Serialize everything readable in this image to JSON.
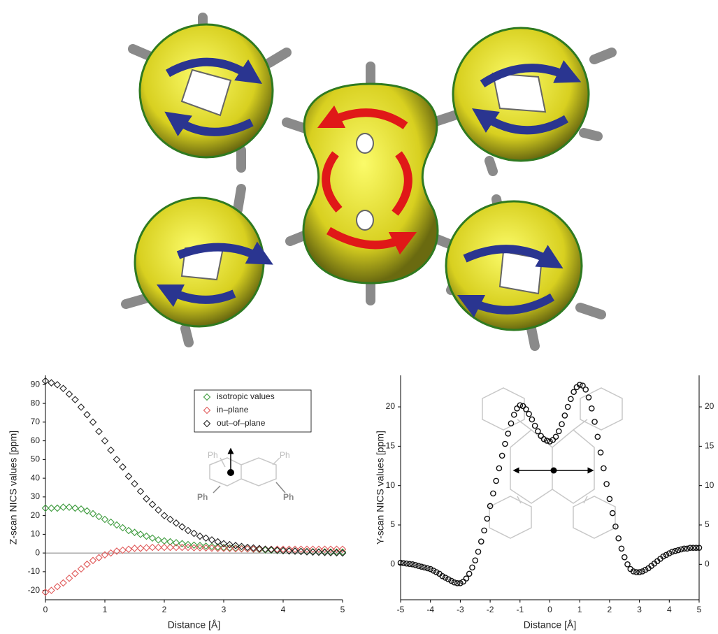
{
  "chart_data": [
    {
      "type": "scatter",
      "xlabel": "Distance [Å]",
      "ylabel": "Z-scan NICS values [ppm]",
      "x": [
        0,
        0.1,
        0.2,
        0.3,
        0.4,
        0.5,
        0.6,
        0.7,
        0.8,
        0.9,
        1,
        1.1,
        1.2,
        1.3,
        1.4,
        1.5,
        1.6,
        1.7,
        1.8,
        1.9,
        2,
        2.1,
        2.2,
        2.3,
        2.4,
        2.5,
        2.6,
        2.7,
        2.8,
        2.9,
        3,
        3.1,
        3.2,
        3.3,
        3.4,
        3.5,
        3.6,
        3.7,
        3.8,
        3.9,
        4,
        4.1,
        4.2,
        4.3,
        4.4,
        4.5,
        4.6,
        4.7,
        4.8,
        4.9,
        5
      ],
      "xlim": [
        0,
        5
      ],
      "ylim": [
        -25,
        95
      ],
      "xticks": [
        0,
        1,
        2,
        3,
        4,
        5
      ],
      "yticks": [
        -20,
        -10,
        0,
        10,
        20,
        30,
        40,
        50,
        60,
        70,
        80,
        90
      ],
      "legend": "upper right",
      "marker": "diamond",
      "zero_line": true,
      "annotations": [
        "Ph",
        "Ph",
        "Ph",
        "Ph"
      ],
      "series": [
        {
          "name": "isotropic values",
          "color": "#3c9a3c",
          "values": [
            24,
            24,
            24,
            24.5,
            24.5,
            24,
            23.5,
            22.5,
            21,
            19.5,
            18,
            16.5,
            15,
            13.5,
            12,
            11,
            10,
            9,
            8,
            7,
            6.5,
            6,
            5.5,
            5,
            4.5,
            4.2,
            4,
            3.7,
            3.5,
            3.2,
            3,
            2.8,
            2.6,
            2.4,
            2.2,
            2,
            1.8,
            1.6,
            1.5,
            1.3,
            1.2,
            1.1,
            1,
            0.9,
            0.8,
            0.7,
            0.6,
            0.6,
            0.5,
            0.5,
            0.5
          ]
        },
        {
          "name": "in–plane",
          "color": "#e05a5a",
          "values": [
            -21,
            -20,
            -18,
            -16,
            -13.5,
            -11,
            -8.5,
            -6,
            -4,
            -2.5,
            -1,
            0,
            1,
            1.5,
            2,
            2.5,
            2.5,
            2.8,
            3,
            3,
            3,
            3,
            3,
            3,
            3,
            2.8,
            2.8,
            2.7,
            2.6,
            2.5,
            2.5,
            2.4,
            2.3,
            2.2,
            2.2,
            2.1,
            2,
            2,
            2,
            2,
            2,
            2,
            2,
            2,
            2,
            2,
            2,
            2,
            2,
            2,
            2
          ]
        },
        {
          "name": "out–of–plane",
          "color": "#222222",
          "values": [
            92,
            91,
            90,
            88,
            85,
            82,
            78,
            74,
            70,
            65,
            60,
            55,
            50,
            46,
            41,
            37,
            33,
            29,
            26,
            23,
            20,
            18,
            16,
            14,
            12,
            10.5,
            9,
            8,
            7,
            6,
            5,
            4.5,
            4,
            3.5,
            3,
            2.7,
            2.4,
            2,
            1.8,
            1.5,
            1.3,
            1.1,
            1,
            0.8,
            0.6,
            0.5,
            0.4,
            0.3,
            0.2,
            0.1,
            0
          ]
        }
      ]
    },
    {
      "type": "scatter",
      "xlabel": "Distance [Å]",
      "ylabel": "Y-scan NICS values [ppm]",
      "x": [
        -5,
        -4.9,
        -4.8,
        -4.7,
        -4.6,
        -4.5,
        -4.4,
        -4.3,
        -4.2,
        -4.1,
        -4,
        -3.9,
        -3.8,
        -3.7,
        -3.6,
        -3.5,
        -3.4,
        -3.3,
        -3.2,
        -3.1,
        -3,
        -2.9,
        -2.8,
        -2.7,
        -2.6,
        -2.5,
        -2.4,
        -2.3,
        -2.2,
        -2.1,
        -2,
        -1.9,
        -1.8,
        -1.7,
        -1.6,
        -1.5,
        -1.4,
        -1.3,
        -1.2,
        -1.1,
        -1,
        -0.9,
        -0.8,
        -0.7,
        -0.6,
        -0.5,
        -0.4,
        -0.3,
        -0.2,
        -0.1,
        0,
        0.1,
        0.2,
        0.3,
        0.4,
        0.5,
        0.6,
        0.7,
        0.8,
        0.9,
        1,
        1.1,
        1.2,
        1.3,
        1.4,
        1.5,
        1.6,
        1.7,
        1.8,
        1.9,
        2,
        2.1,
        2.2,
        2.3,
        2.4,
        2.5,
        2.6,
        2.7,
        2.8,
        2.9,
        3,
        3.1,
        3.2,
        3.3,
        3.4,
        3.5,
        3.6,
        3.7,
        3.8,
        3.9,
        4,
        4.1,
        4.2,
        4.3,
        4.4,
        4.5,
        4.6,
        4.7,
        4.8,
        4.9,
        5
      ],
      "xlim": [
        -5,
        5
      ],
      "ylim": [
        -4.5,
        24
      ],
      "xticks": [
        -5,
        -4,
        -3,
        -2,
        -1,
        0,
        1,
        2,
        3,
        4,
        5
      ],
      "yticks": [
        0,
        5,
        10,
        15,
        20
      ],
      "marker": "circle",
      "mirror_y_ticks": true,
      "series": [
        {
          "color": "#111111",
          "values": [
            0.2,
            0.15,
            0.1,
            0.05,
            0,
            -0.1,
            -0.2,
            -0.3,
            -0.4,
            -0.5,
            -0.6,
            -0.8,
            -1,
            -1.2,
            -1.5,
            -1.7,
            -1.9,
            -2.1,
            -2.3,
            -2.4,
            -2.4,
            -2.2,
            -1.8,
            -1.2,
            -0.4,
            0.5,
            1.6,
            2.9,
            4.3,
            5.8,
            7.4,
            9,
            10.6,
            12.2,
            13.8,
            15.3,
            16.6,
            17.9,
            19,
            19.8,
            20.2,
            20.1,
            19.7,
            19.1,
            18.4,
            17.6,
            16.9,
            16.3,
            15.9,
            15.7,
            15.6,
            15.8,
            16.2,
            16.9,
            17.8,
            18.9,
            20,
            21,
            21.9,
            22.5,
            22.8,
            22.7,
            22.2,
            21.2,
            19.8,
            18.1,
            16.2,
            14.2,
            12.2,
            10.2,
            8.3,
            6.5,
            4.8,
            3.3,
            2,
            0.9,
            0,
            -0.6,
            -0.9,
            -1,
            -1,
            -0.9,
            -0.7,
            -0.5,
            -0.2,
            0.1,
            0.4,
            0.7,
            1,
            1.2,
            1.4,
            1.6,
            1.7,
            1.8,
            1.9,
            2,
            2,
            2.1,
            2.1,
            2.1,
            2.1
          ]
        }
      ]
    }
  ]
}
